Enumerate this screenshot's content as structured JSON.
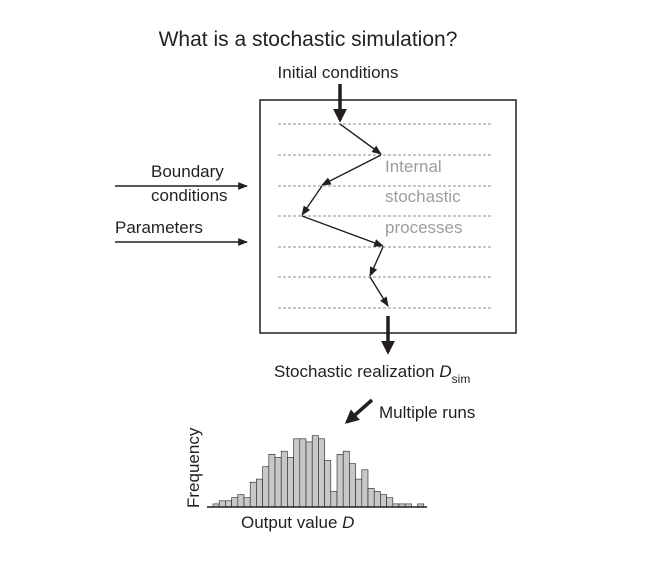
{
  "diagram": {
    "title": "What is a stochastic simulation?",
    "inputs": {
      "initial_conditions": "Initial conditions",
      "boundary_conditions_line1": "Boundary",
      "boundary_conditions_line2": "conditions",
      "parameters": "Parameters"
    },
    "internal": {
      "line1": "Internal",
      "line2": "stochastic",
      "line3": "processes"
    },
    "output": {
      "realization_prefix": "Stochastic realization ",
      "realization_symbol": "D",
      "realization_subscript": "sim",
      "multiple_runs": "Multiple runs"
    }
  },
  "chart_data": {
    "type": "bar",
    "xlabel_prefix": "Output value ",
    "xlabel_symbol": "D",
    "ylabel": "Frequency",
    "values": [
      1,
      2,
      2,
      3,
      4,
      3,
      8,
      9,
      13,
      17,
      16,
      18,
      16,
      22,
      22,
      21,
      23,
      22,
      15,
      5,
      17,
      18,
      14,
      9,
      12,
      6,
      5,
      4,
      3,
      1,
      1,
      1,
      0,
      1
    ]
  }
}
